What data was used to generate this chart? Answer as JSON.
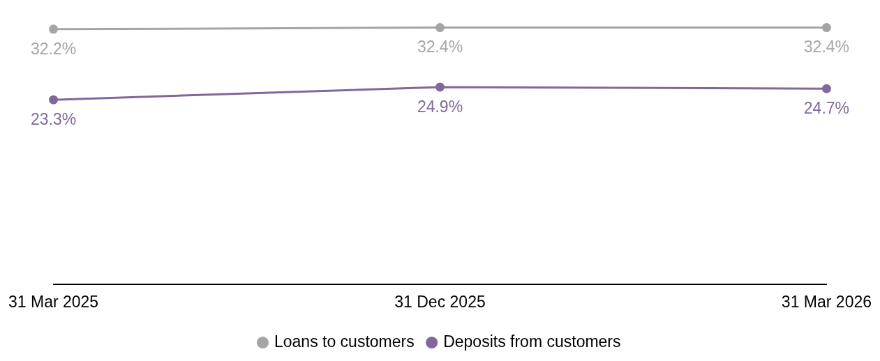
{
  "chart_data": {
    "type": "line",
    "categories": [
      "31 Mar 2025",
      "31 Dec 2025",
      "31 Mar 2026"
    ],
    "series": [
      {
        "name": "Loans to customers",
        "color": "#a5a5a5",
        "values": [
          32.2,
          32.4,
          32.4
        ],
        "value_labels": [
          "32.2%",
          "32.4%",
          "32.4%"
        ]
      },
      {
        "name": "Deposits from customers",
        "color": "#80689a",
        "values": [
          23.3,
          24.9,
          24.7
        ],
        "value_labels": [
          "23.3%",
          "24.9%",
          "24.7%"
        ]
      }
    ],
    "tick_labels": "x",
    "legend": "bottom",
    "marker": "circle",
    "line_style": "solid"
  }
}
